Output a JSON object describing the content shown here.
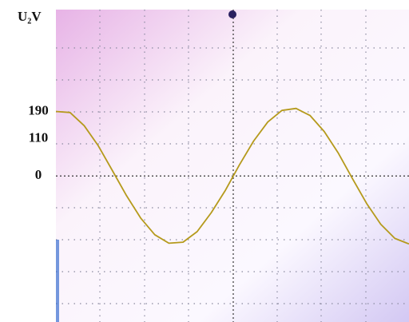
{
  "chart_data": {
    "type": "line",
    "title": "U₂V",
    "x": [
      0,
      4,
      8,
      12,
      16,
      20,
      24,
      28,
      32,
      36,
      40,
      44,
      48,
      52,
      56,
      60,
      64,
      68,
      72,
      76,
      80,
      84,
      88,
      92,
      96,
      100
    ],
    "xlim": [
      0,
      100
    ],
    "series": [
      {
        "color": "#b59a1c",
        "values": [
          190,
          187,
          148,
          89,
          16,
          -58,
          -124,
          -173,
          -198,
          -195,
          -164,
          -108,
          -42,
          33,
          103,
          159,
          193,
          199,
          178,
          131,
          67,
          -8,
          -81,
          -142,
          -184,
          -200
        ]
      }
    ],
    "ylim": [
      -430,
      490
    ],
    "yticks": [
      190,
      110,
      0
    ]
  }
}
